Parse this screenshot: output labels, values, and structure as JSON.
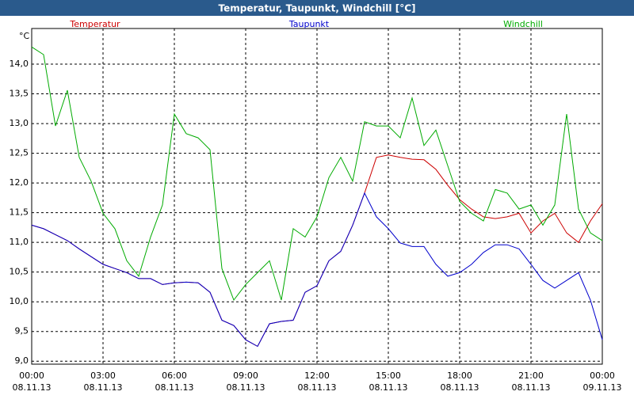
{
  "chart_data": {
    "type": "line",
    "title": "Temperatur, Taupunkt, Windchill [°C]",
    "y_label": "°C",
    "x": [
      0,
      0.5,
      1,
      1.5,
      2,
      2.5,
      3,
      3.5,
      4,
      4.5,
      5,
      5.5,
      6,
      6.5,
      7,
      7.5,
      8,
      8.5,
      9,
      9.5,
      10,
      10.5,
      11,
      11.5,
      12,
      12.5,
      13,
      13.5,
      14,
      14.5,
      15,
      15.5,
      16,
      16.5,
      17,
      17.5,
      18,
      18.5,
      19,
      19.5,
      20,
      20.5,
      21,
      21.5,
      22,
      22.5,
      23,
      23.5,
      24
    ],
    "series": [
      {
        "name": "Temperatur",
        "color": "#cc0000",
        "values": [
          11.29,
          11.23,
          11.13,
          11.03,
          10.89,
          10.76,
          10.63,
          10.56,
          10.49,
          10.39,
          10.39,
          10.29,
          10.32,
          10.33,
          10.32,
          10.16,
          9.69,
          9.6,
          9.36,
          9.25,
          9.63,
          9.67,
          9.69,
          10.16,
          10.27,
          10.69,
          10.85,
          11.29,
          11.83,
          12.43,
          12.47,
          12.43,
          12.4,
          12.39,
          12.23,
          11.96,
          11.72,
          11.56,
          11.43,
          11.4,
          11.43,
          11.49,
          11.16,
          11.36,
          11.49,
          11.16,
          11.0,
          11.36,
          11.65
        ]
      },
      {
        "name": "Taupunkt",
        "color": "#0000cc",
        "values": [
          11.29,
          11.23,
          11.13,
          11.03,
          10.89,
          10.76,
          10.63,
          10.56,
          10.49,
          10.39,
          10.39,
          10.29,
          10.32,
          10.33,
          10.32,
          10.16,
          9.69,
          9.6,
          9.36,
          9.25,
          9.63,
          9.67,
          9.69,
          10.16,
          10.27,
          10.69,
          10.85,
          11.29,
          11.83,
          11.43,
          11.23,
          10.99,
          10.93,
          10.93,
          10.63,
          10.43,
          10.49,
          10.63,
          10.83,
          10.96,
          10.96,
          10.89,
          10.63,
          10.36,
          10.23,
          10.36,
          10.49,
          10.03,
          9.36
        ]
      },
      {
        "name": "Windchill",
        "color": "#00aa00",
        "values": [
          14.29,
          14.16,
          12.96,
          13.56,
          12.43,
          12.03,
          11.49,
          11.23,
          10.69,
          10.43,
          11.09,
          11.63,
          13.16,
          12.83,
          12.76,
          12.56,
          10.56,
          10.03,
          10.29,
          10.49,
          10.69,
          10.03,
          11.23,
          11.09,
          11.43,
          12.09,
          12.43,
          12.03,
          13.03,
          12.96,
          12.96,
          12.76,
          13.43,
          12.63,
          12.89,
          12.29,
          11.69,
          11.49,
          11.36,
          11.89,
          11.83,
          11.56,
          11.63,
          11.29,
          11.63,
          13.16,
          11.56,
          11.16,
          11.03
        ]
      }
    ],
    "xlim": [
      0,
      24
    ],
    "xticks": [
      {
        "value": 0,
        "label": "00:00"
      },
      {
        "value": 3,
        "label": "03:00"
      },
      {
        "value": 6,
        "label": "06:00"
      },
      {
        "value": 9,
        "label": "09:00"
      },
      {
        "value": 12,
        "label": "12:00"
      },
      {
        "value": 15,
        "label": "15:00"
      },
      {
        "value": 18,
        "label": "18:00"
      },
      {
        "value": 21,
        "label": "21:00"
      },
      {
        "value": 24,
        "label": "00:00"
      }
    ],
    "xtick_dates": [
      "08.11.13",
      "08.11.13",
      "08.11.13",
      "08.11.13",
      "08.11.13",
      "08.11.13",
      "08.11.13",
      "08.11.13",
      "09.11.13"
    ],
    "ylim": [
      8.95,
      14.6
    ],
    "yticks": [
      {
        "value": 9,
        "label": "9,0"
      },
      {
        "value": 9.5,
        "label": "9,5"
      },
      {
        "value": 10,
        "label": "10,0"
      },
      {
        "value": 10.5,
        "label": "10,5"
      },
      {
        "value": 11,
        "label": "11,0"
      },
      {
        "value": 11.5,
        "label": "11,5"
      },
      {
        "value": 12,
        "label": "12,0"
      },
      {
        "value": 12.5,
        "label": "12,5"
      },
      {
        "value": 13,
        "label": "13,0"
      },
      {
        "value": 13.5,
        "label": "13,5"
      },
      {
        "value": 14,
        "label": "14,0"
      }
    ],
    "grid": true
  }
}
